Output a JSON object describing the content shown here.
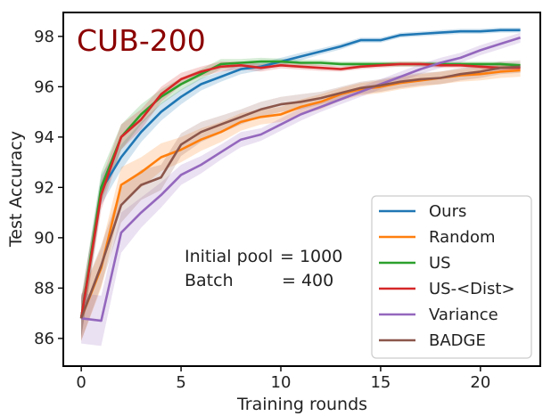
{
  "chart_data": {
    "type": "line",
    "title": "",
    "inset_title": "CUB-200",
    "inset_title_color": "#8b0000",
    "xlabel": "Training rounds",
    "ylabel": "Test Accuracy",
    "xlim": [
      -0.9,
      23.0
    ],
    "ylim": [
      84.9,
      98.95
    ],
    "xticks": [
      0,
      5,
      10,
      15,
      20
    ],
    "yticks": [
      86,
      88,
      90,
      92,
      94,
      96,
      98
    ],
    "grid": false,
    "legend_position": "lower-right",
    "annotation": {
      "line1_left": "Initial pool",
      "line1_right": "= 1000",
      "line2_left": "Batch",
      "line2_right": "= 400"
    },
    "x": [
      0,
      1,
      2,
      3,
      4,
      5,
      6,
      7,
      8,
      9,
      10,
      11,
      12,
      13,
      14,
      15,
      16,
      17,
      18,
      19,
      20,
      21,
      22
    ],
    "series": [
      {
        "name": "Ours",
        "color": "#1f77b4",
        "values": [
          86.8,
          91.9,
          93.2,
          94.2,
          95.0,
          95.6,
          96.1,
          96.4,
          96.7,
          96.8,
          97.0,
          97.2,
          97.4,
          97.6,
          97.85,
          97.85,
          98.05,
          98.1,
          98.15,
          98.2,
          98.2,
          98.25,
          98.25
        ],
        "band": [
          0.7,
          0.6,
          0.5,
          0.4,
          0.35,
          0.3,
          0.25,
          0.2,
          0.2,
          0.15,
          0.15,
          0.15,
          0.12,
          0.12,
          0.1,
          0.1,
          0.1,
          0.1,
          0.1,
          0.1,
          0.1,
          0.1,
          0.1
        ]
      },
      {
        "name": "Random",
        "color": "#ff7f0e",
        "values": [
          86.8,
          88.8,
          92.1,
          92.6,
          93.2,
          93.5,
          93.9,
          94.2,
          94.6,
          94.8,
          94.9,
          95.2,
          95.4,
          95.7,
          95.9,
          96.0,
          96.15,
          96.25,
          96.35,
          96.45,
          96.5,
          96.6,
          96.65
        ],
        "band": [
          0.9,
          0.8,
          0.7,
          0.6,
          0.55,
          0.5,
          0.45,
          0.4,
          0.35,
          0.3,
          0.3,
          0.3,
          0.3,
          0.25,
          0.25,
          0.25,
          0.25,
          0.25,
          0.25,
          0.25,
          0.25,
          0.25,
          0.25
        ]
      },
      {
        "name": "US",
        "color": "#2ca02c",
        "values": [
          86.8,
          92.0,
          94.0,
          94.9,
          95.6,
          96.1,
          96.5,
          96.9,
          96.95,
          97.0,
          97.0,
          96.95,
          96.95,
          96.9,
          96.9,
          96.9,
          96.9,
          96.9,
          96.9,
          96.9,
          96.9,
          96.9,
          96.85
        ],
        "band": [
          0.8,
          0.6,
          0.5,
          0.4,
          0.3,
          0.25,
          0.2,
          0.2,
          0.15,
          0.15,
          0.12,
          0.12,
          0.12,
          0.1,
          0.1,
          0.1,
          0.1,
          0.1,
          0.1,
          0.1,
          0.1,
          0.1,
          0.1
        ]
      },
      {
        "name": "US-<Dist>",
        "color": "#d62728",
        "values": [
          86.8,
          91.7,
          94.0,
          94.7,
          95.7,
          96.3,
          96.6,
          96.8,
          96.85,
          96.75,
          96.85,
          96.8,
          96.75,
          96.7,
          96.8,
          96.85,
          96.9,
          96.9,
          96.85,
          96.85,
          96.8,
          96.75,
          96.75
        ],
        "band": [
          0.8,
          0.6,
          0.5,
          0.4,
          0.3,
          0.25,
          0.2,
          0.2,
          0.15,
          0.15,
          0.12,
          0.12,
          0.12,
          0.1,
          0.1,
          0.1,
          0.1,
          0.1,
          0.1,
          0.1,
          0.1,
          0.1,
          0.1
        ]
      },
      {
        "name": "Variance",
        "color": "#9467bd",
        "values": [
          86.8,
          86.7,
          90.2,
          91.0,
          91.7,
          92.5,
          92.9,
          93.4,
          93.9,
          94.1,
          94.5,
          94.9,
          95.2,
          95.5,
          95.8,
          96.1,
          96.4,
          96.7,
          96.95,
          97.15,
          97.45,
          97.7,
          97.95
        ],
        "band": [
          1.0,
          1.0,
          0.8,
          0.6,
          0.5,
          0.4,
          0.35,
          0.3,
          0.3,
          0.25,
          0.25,
          0.25,
          0.2,
          0.2,
          0.2,
          0.2,
          0.2,
          0.2,
          0.2,
          0.2,
          0.2,
          0.2,
          0.2
        ]
      },
      {
        "name": "BADGE",
        "color": "#8c564b",
        "values": [
          86.8,
          88.9,
          91.3,
          92.1,
          92.4,
          93.7,
          94.2,
          94.5,
          94.8,
          95.1,
          95.3,
          95.4,
          95.55,
          95.75,
          95.95,
          96.05,
          96.2,
          96.3,
          96.35,
          96.5,
          96.6,
          96.75,
          96.8
        ],
        "band": [
          0.9,
          0.8,
          0.7,
          0.6,
          0.5,
          0.45,
          0.4,
          0.35,
          0.3,
          0.3,
          0.3,
          0.3,
          0.25,
          0.25,
          0.25,
          0.25,
          0.25,
          0.25,
          0.25,
          0.25,
          0.25,
          0.25,
          0.25
        ]
      }
    ]
  }
}
